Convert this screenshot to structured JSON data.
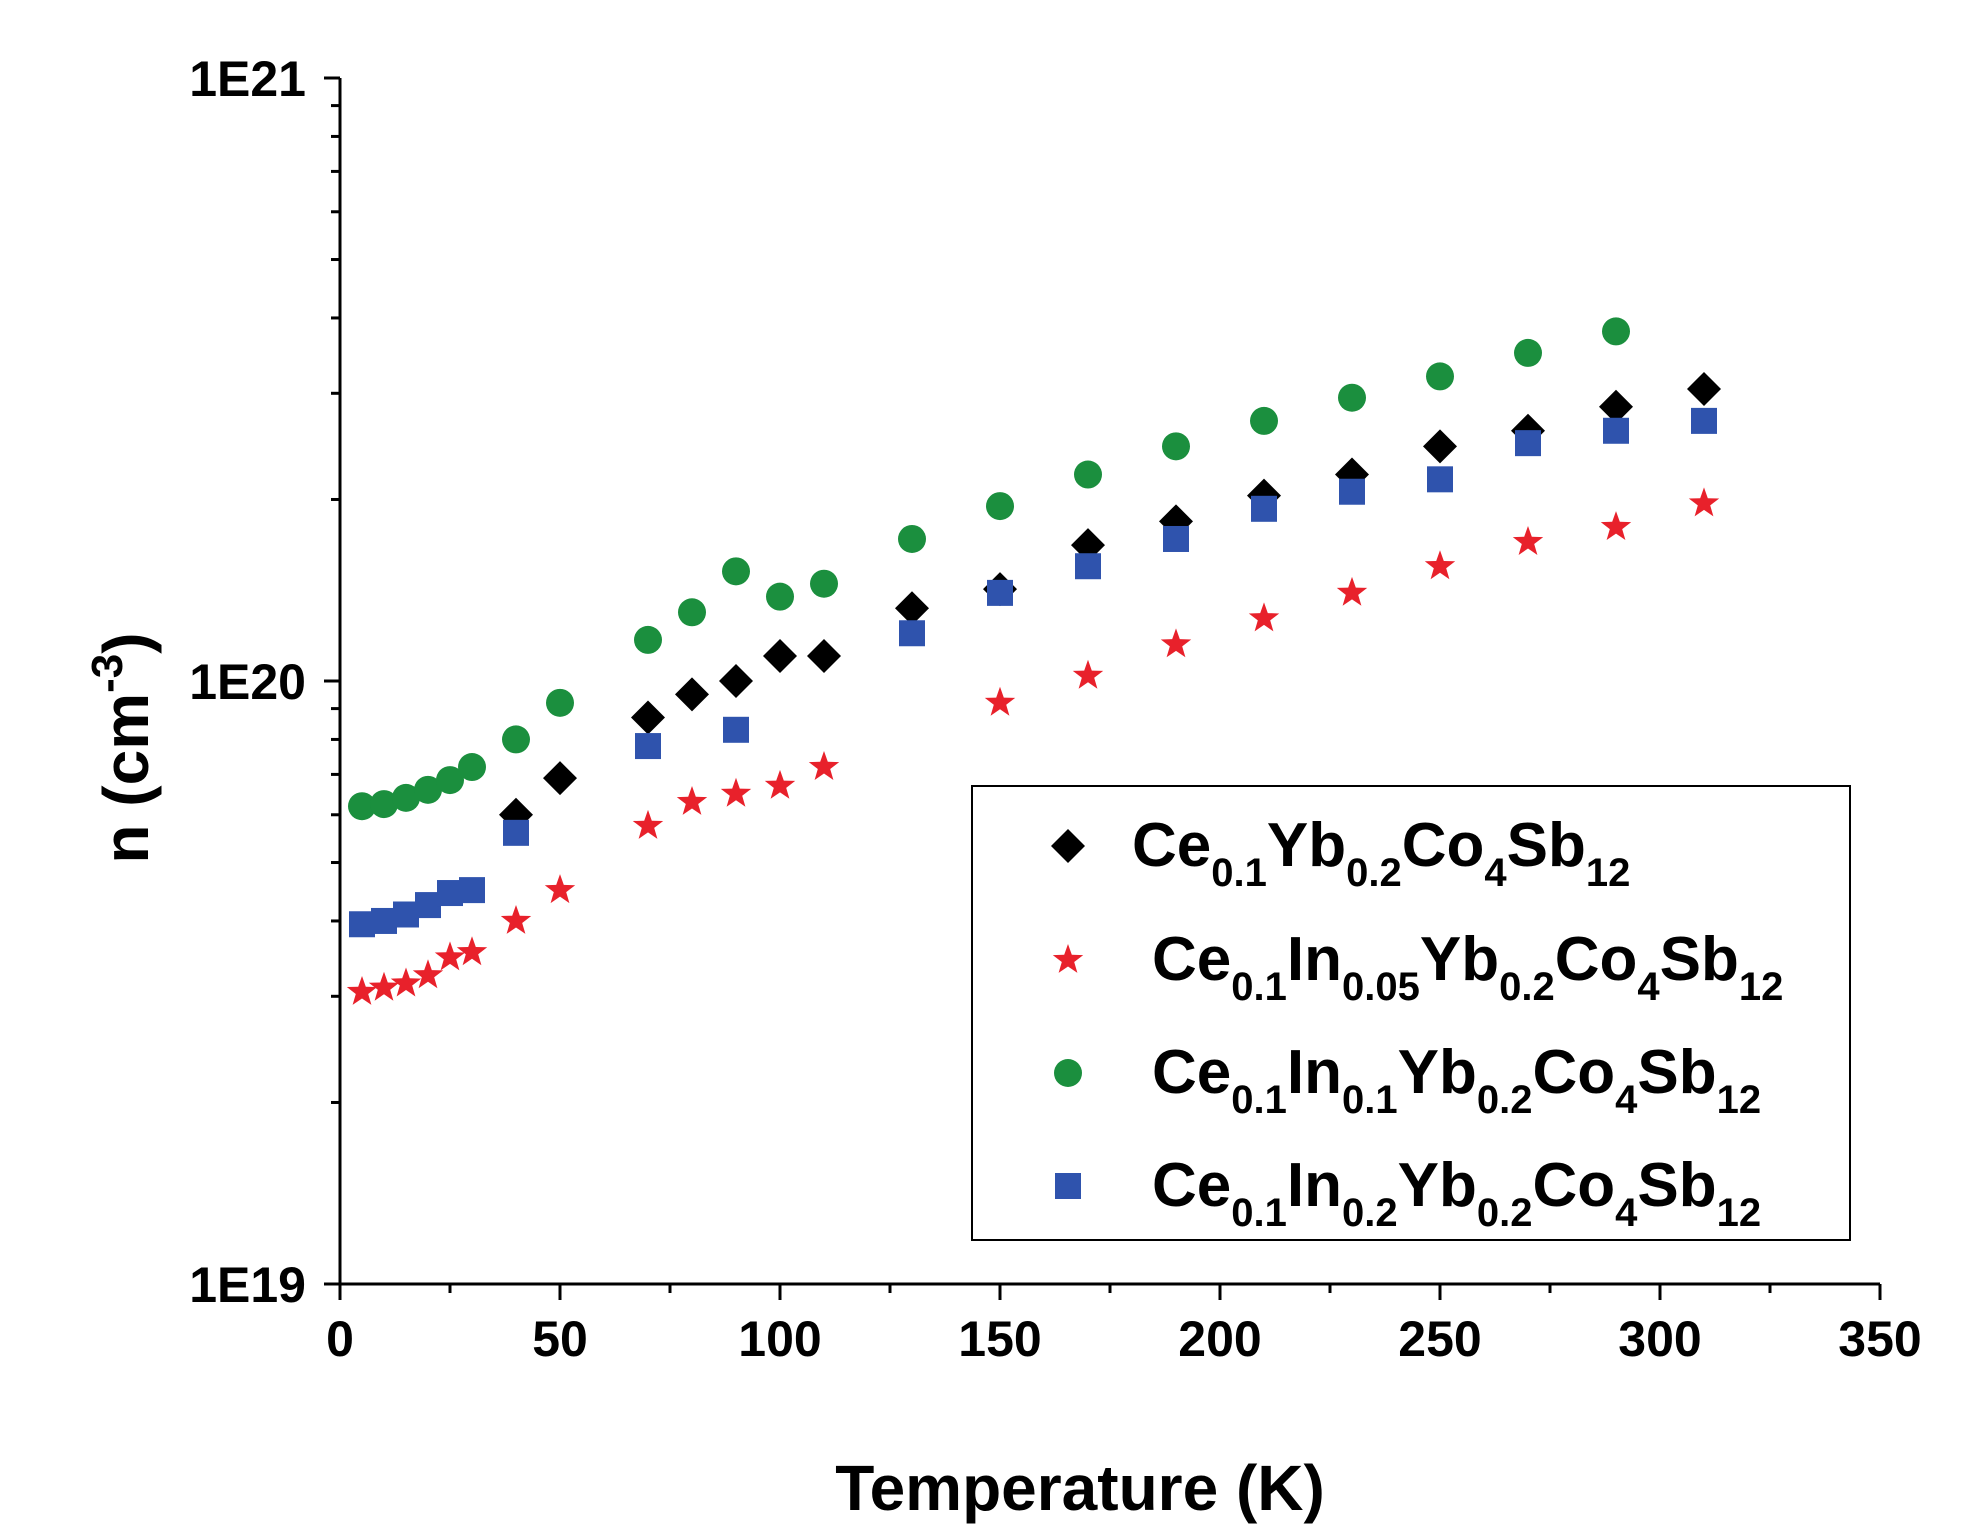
{
  "chart_data": {
    "type": "scatter",
    "title": "",
    "xlabel": "Temperature (K)",
    "ylabel": {
      "base": "n (cm",
      "sup": "-3",
      "close": ")"
    },
    "x_axis": {
      "range": [
        0,
        350
      ],
      "major_ticks": [
        0,
        50,
        100,
        150,
        200,
        250,
        300,
        350
      ],
      "tick_labels": [
        "0",
        "50",
        "100",
        "150",
        "200",
        "250",
        "300",
        "350"
      ]
    },
    "y_axis": {
      "scale": "log",
      "range": [
        1e+19,
        1e+21
      ],
      "major_ticks": [
        1e+19,
        1e+20,
        1e+21
      ],
      "tick_labels": [
        "1E19",
        "1E20",
        "1E21"
      ]
    },
    "legend_position": "lower-right",
    "series": [
      {
        "name": "Ce0.1Yb0.2Co4Sb12",
        "label_parts": [
          [
            "Ce",
            ""
          ],
          [
            "0.1",
            "sub"
          ],
          [
            "Yb",
            ""
          ],
          [
            "0.2",
            "sub"
          ],
          [
            "Co",
            ""
          ],
          [
            "4",
            "sub"
          ],
          [
            "Sb",
            ""
          ],
          [
            "12",
            "sub"
          ]
        ],
        "marker": "diamond",
        "color": "#000000",
        "x": [
          40,
          50,
          70,
          80,
          90,
          100,
          110,
          130,
          150,
          170,
          190,
          210,
          230,
          250,
          270,
          290,
          310
        ],
        "y": [
          6e+19,
          6.9e+19,
          8.7e+19,
          9.5e+19,
          1e+20,
          1.1e+20,
          1.1e+20,
          1.32e+20,
          1.42e+20,
          1.68e+20,
          1.84e+20,
          2.03e+20,
          2.2e+20,
          2.45e+20,
          2.6e+20,
          2.85e+20,
          3.05e+20
        ]
      },
      {
        "name": "Ce0.1In0.05Yb0.2Co4Sb12",
        "label_parts": [
          [
            "Ce",
            ""
          ],
          [
            "0.1",
            "sub"
          ],
          [
            "In",
            ""
          ],
          [
            "0.05",
            "sub"
          ],
          [
            "Yb",
            ""
          ],
          [
            "0.2",
            "sub"
          ],
          [
            "Co",
            ""
          ],
          [
            "4",
            "sub"
          ],
          [
            "Sb",
            ""
          ],
          [
            "12",
            "sub"
          ]
        ],
        "marker": "star",
        "color": "#e8212b",
        "x": [
          5,
          10,
          15,
          20,
          25,
          30,
          40,
          50,
          70,
          80,
          90,
          100,
          110,
          150,
          170,
          190,
          210,
          230,
          250,
          270,
          290,
          310
        ],
        "y": [
          3.05e+19,
          3.1e+19,
          3.15e+19,
          3.25e+19,
          3.48e+19,
          3.55e+19,
          4e+19,
          4.5e+19,
          5.75e+19,
          6.3e+19,
          6.5e+19,
          6.7e+19,
          7.2e+19,
          9.2e+19,
          1.02e+20,
          1.15e+20,
          1.27e+20,
          1.4e+20,
          1.55e+20,
          1.7e+20,
          1.8e+20,
          1.97e+20
        ]
      },
      {
        "name": "Ce0.1In0.1Yb0.2Co4Sb12",
        "label_parts": [
          [
            "Ce",
            ""
          ],
          [
            "0.1",
            "sub"
          ],
          [
            "In",
            ""
          ],
          [
            "0.1",
            "sub"
          ],
          [
            "Yb",
            ""
          ],
          [
            "0.2",
            "sub"
          ],
          [
            "Co",
            ""
          ],
          [
            "4",
            "sub"
          ],
          [
            "Sb",
            ""
          ],
          [
            "12",
            "sub"
          ]
        ],
        "marker": "circle",
        "color": "#1b8f3e",
        "x": [
          5,
          10,
          15,
          20,
          25,
          30,
          40,
          50,
          70,
          80,
          90,
          100,
          110,
          130,
          150,
          170,
          190,
          210,
          230,
          250,
          270,
          290
        ],
        "y": [
          6.2e+19,
          6.25e+19,
          6.4e+19,
          6.6e+19,
          6.85e+19,
          7.2e+19,
          8e+19,
          9.2e+19,
          1.17e+20,
          1.3e+20,
          1.52e+20,
          1.38e+20,
          1.45e+20,
          1.72e+20,
          1.95e+20,
          2.2e+20,
          2.45e+20,
          2.7e+20,
          2.95e+20,
          3.2e+20,
          3.5e+20,
          3.8e+20
        ]
      },
      {
        "name": "Ce0.1In0.2Yb0.2Co4Sb12",
        "label_parts": [
          [
            "Ce",
            ""
          ],
          [
            "0.1",
            "sub"
          ],
          [
            "In",
            ""
          ],
          [
            "0.2",
            "sub"
          ],
          [
            "Yb",
            ""
          ],
          [
            "0.2",
            "sub"
          ],
          [
            "Co",
            ""
          ],
          [
            "4",
            "sub"
          ],
          [
            "Sb",
            ""
          ],
          [
            "12",
            "sub"
          ]
        ],
        "marker": "square",
        "color": "#2f53ad",
        "x": [
          5,
          10,
          15,
          20,
          25,
          30,
          40,
          70,
          90,
          130,
          150,
          170,
          190,
          210,
          230,
          250,
          270,
          290,
          310
        ],
        "y": [
          3.95e+19,
          4e+19,
          4.1e+19,
          4.25e+19,
          4.45e+19,
          4.5e+19,
          5.6e+19,
          7.8e+19,
          8.3e+19,
          1.2e+20,
          1.4e+20,
          1.55e+20,
          1.72e+20,
          1.93e+20,
          2.06e+20,
          2.16e+20,
          2.48e+20,
          2.6e+20,
          2.7e+20
        ]
      }
    ]
  }
}
